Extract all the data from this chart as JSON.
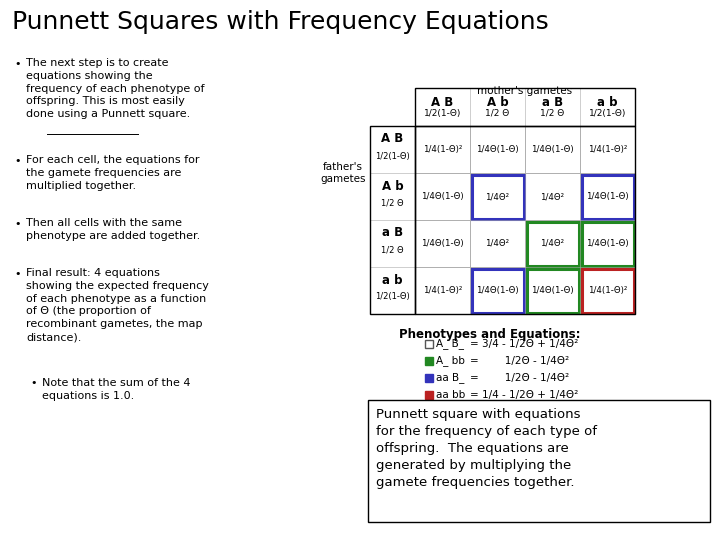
{
  "title": "Punnett Squares with Frequency Equations",
  "background_color": "#ffffff",
  "title_fontsize": 18,
  "bullet_points": [
    "The next step is to create\nequations showing the\nfrequency of each phenotype of\noffspring. This is most easily\ndone using a Punnett square.",
    "For each cell, the equations for\nthe gamete frequencies are\nmultiplied together.",
    "Then all cells with the same\nphenotype are added together.",
    "Final result: 4 equations\nshowing the expected frequency\nof each phenotype as a function\nof Θ (the proportion of\nrecombinant gametes, the map\ndistance)."
  ],
  "sub_bullet": "Note that the sum of the 4\nequations is 1.0.",
  "mothers_label": "mother's gametes",
  "fathers_label": "father's\ngametes",
  "col_headers": [
    [
      "A B",
      "1/2(1-Θ)"
    ],
    [
      "A b",
      "1/2 Θ"
    ],
    [
      "a B",
      "1/2 Θ"
    ],
    [
      "a b",
      "1/2(1-Θ)"
    ]
  ],
  "row_headers": [
    [
      "A B",
      "1/2(1-Θ)"
    ],
    [
      "A b",
      "1/2 Θ"
    ],
    [
      "a B",
      "1/2 Θ"
    ],
    [
      "a b",
      "1/2(1-Θ)"
    ]
  ],
  "cells": [
    [
      "1/4(1-Θ)²",
      "1/4Θ(1-Θ)",
      "1/4Θ(1-Θ)",
      "1/4(1-Θ)²"
    ],
    [
      "1/4Θ(1-Θ)",
      "1/4Θ²",
      "1/4Θ²",
      "1/4Θ(1-Θ)"
    ],
    [
      "1/4Θ(1-Θ)",
      "1/4Θ²",
      "1/4Θ²",
      "1/4Θ(1-Θ)"
    ],
    [
      "1/4(1-Θ)²",
      "1/4Θ(1-Θ)",
      "1/4Θ(1-Θ)",
      "1/4(1-Θ)²"
    ]
  ],
  "cell_colors": [
    [
      "none",
      "none",
      "none",
      "none"
    ],
    [
      "none",
      "blue",
      "none",
      "blue"
    ],
    [
      "none",
      "none",
      "green",
      "green"
    ],
    [
      "none",
      "blue",
      "green",
      "red"
    ]
  ],
  "phenotypes_title": "Phenotypes and Equations:",
  "phenotypes": [
    {
      "color": "none",
      "label": "A_ B_",
      "eq": "= 3/4 - 1/2Θ + 1/4Θ²"
    },
    {
      "color": "green",
      "label": "A_ bb",
      "eq": "=        1/2Θ - 1/4Θ²"
    },
    {
      "color": "blue",
      "label": "aa B_",
      "eq": "=        1/2Θ - 1/4Θ²"
    },
    {
      "color": "red",
      "label": "aa bb",
      "eq": "= 1/4 - 1/2Θ + 1/4Θ²"
    }
  ],
  "caption": "Punnett square with equations\nfor the frequency of each type of\noffspring.  The equations are\ngenerated by multiplying the\ngamete frequencies together."
}
